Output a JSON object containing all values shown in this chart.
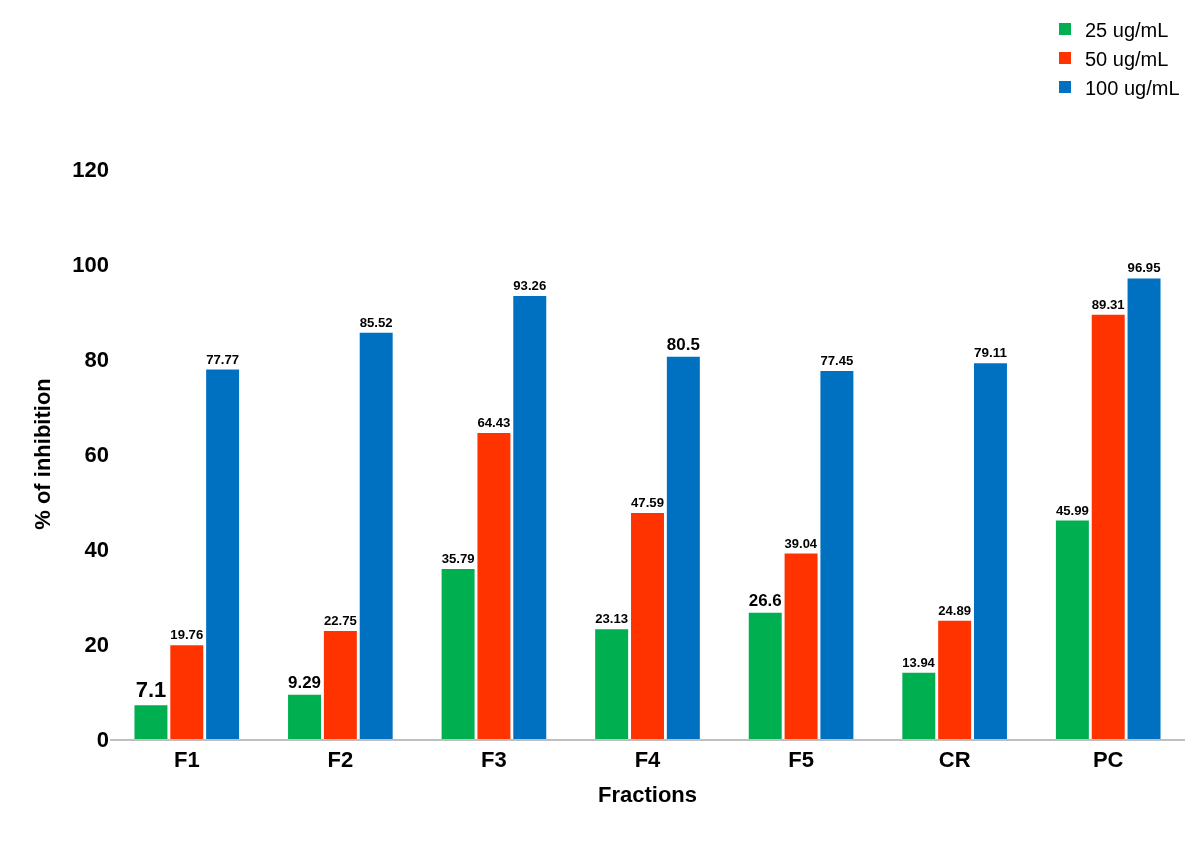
{
  "chart_data": {
    "type": "bar",
    "xlabel": "Fractions",
    "ylabel": "% of inhibition",
    "categories": [
      "F1",
      "F2",
      "F3",
      "F4",
      "F5",
      "CR",
      "PC"
    ],
    "series": [
      {
        "name": "25 ug/mL",
        "color": "#00b050",
        "values": [
          7.1,
          9.29,
          35.79,
          23.13,
          26.6,
          13.94,
          45.99
        ]
      },
      {
        "name": "50 ug/mL",
        "color": "#ff3300",
        "values": [
          19.76,
          22.75,
          64.43,
          47.59,
          39.04,
          24.89,
          89.31
        ]
      },
      {
        "name": "100 ug/mL",
        "color": "#0070c0",
        "values": [
          77.77,
          85.52,
          93.26,
          80.5,
          77.45,
          79.11,
          96.95
        ]
      }
    ],
    "ylim": [
      0,
      120
    ],
    "yticks": [
      0,
      20,
      40,
      60,
      80,
      100,
      120
    ],
    "grid": false,
    "legend": "top right",
    "data_labels": true
  }
}
